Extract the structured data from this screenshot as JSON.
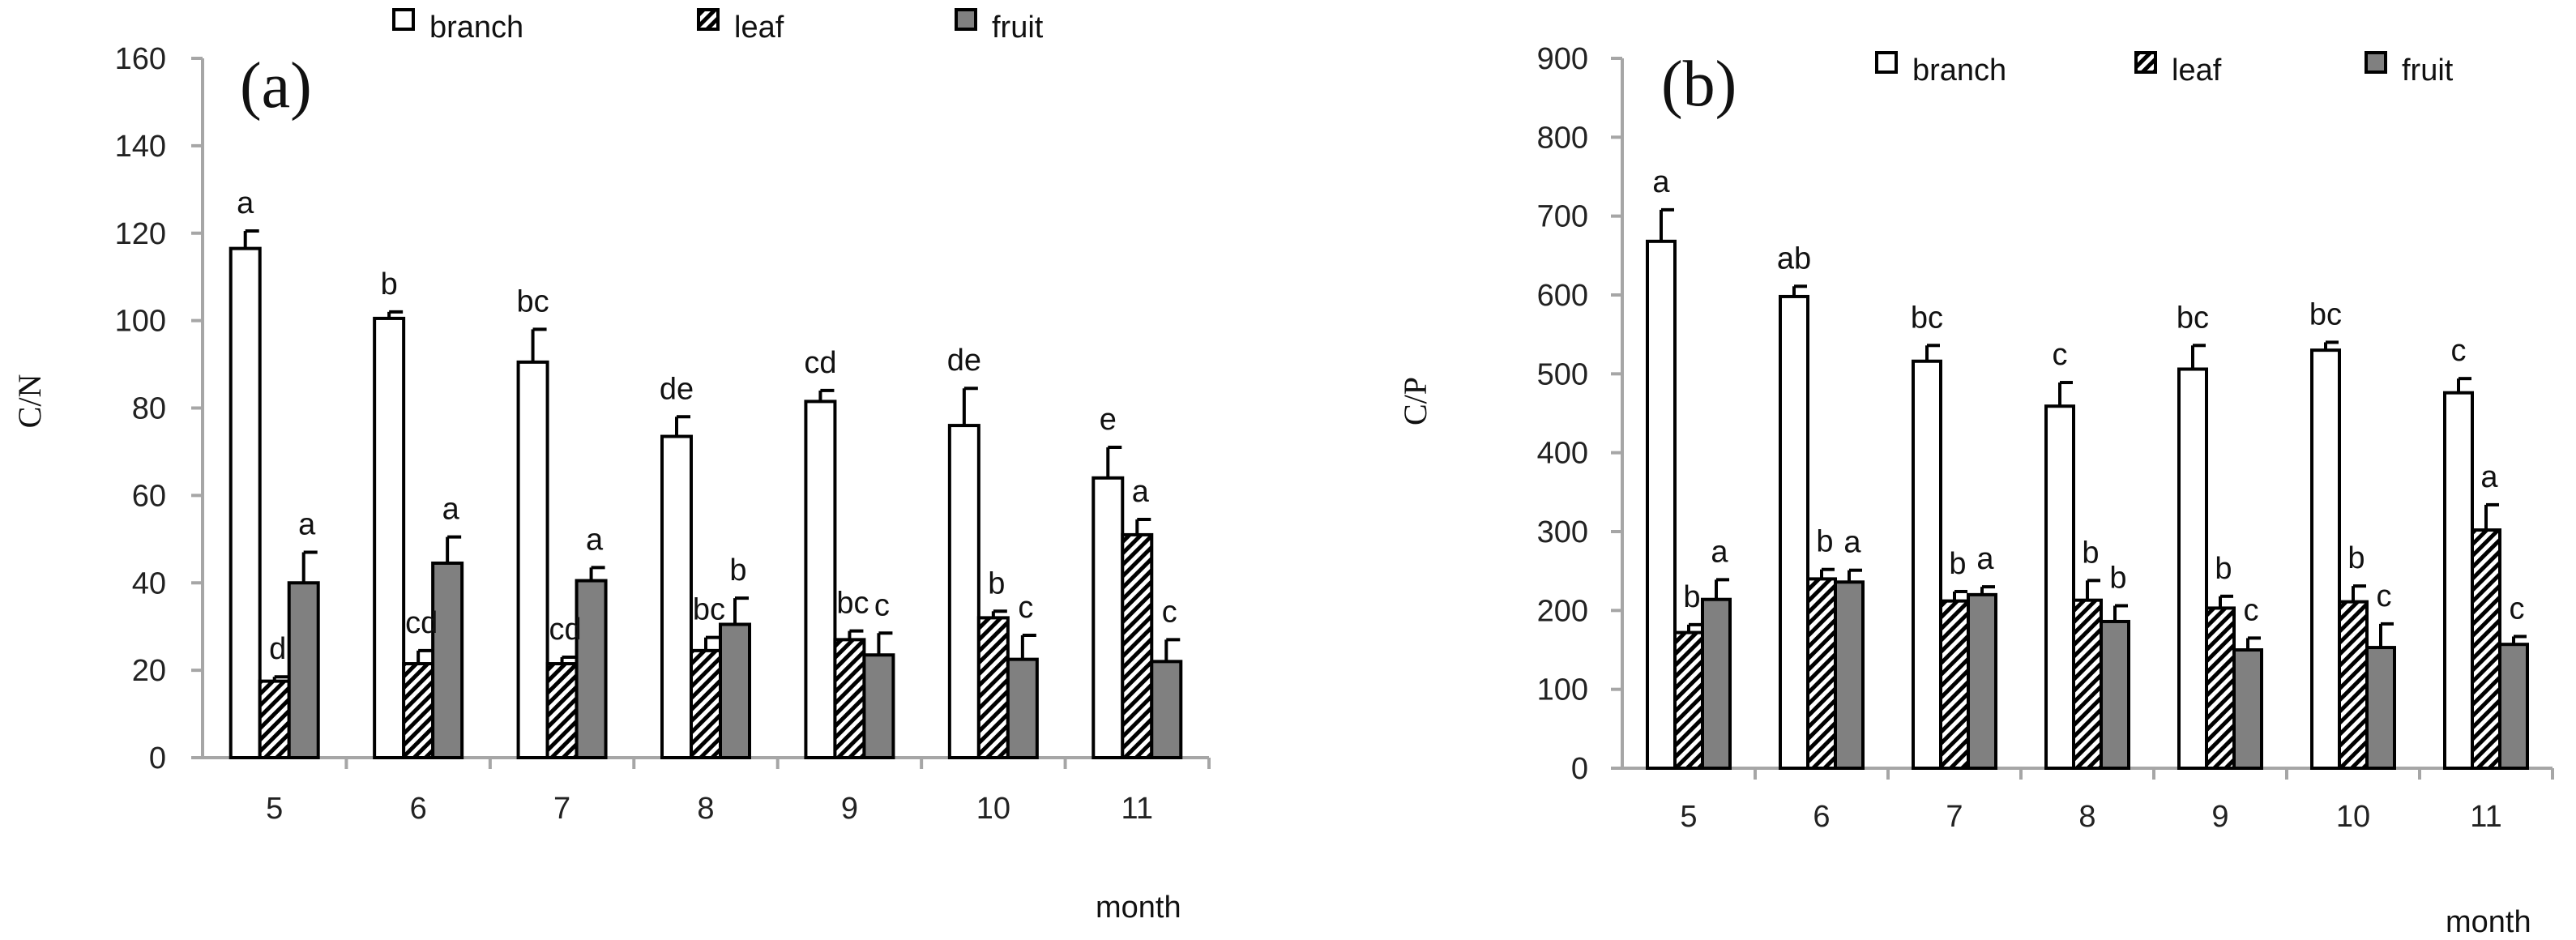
{
  "chart_data": [
    {
      "id": "a",
      "type": "bar",
      "panel_label": "(a)",
      "ylabel": "C/N",
      "xlabel": "month",
      "ylim": [
        0,
        160
      ],
      "yticks": [
        0,
        20,
        40,
        60,
        80,
        100,
        120,
        140,
        160
      ],
      "categories": [
        "5",
        "6",
        "7",
        "8",
        "9",
        "10",
        "11"
      ],
      "legend": [
        "branch",
        "leaf",
        "fruit"
      ],
      "series": [
        {
          "name": "branch",
          "pattern": "white",
          "values": [
            116.5,
            100.5,
            90.5,
            73.5,
            81.5,
            76,
            64
          ],
          "errors": [
            4,
            1.5,
            7.5,
            4.5,
            2.5,
            8.5,
            7
          ],
          "letters": [
            "a",
            "b",
            "bc",
            "de",
            "cd",
            "de",
            "e"
          ]
        },
        {
          "name": "leaf",
          "pattern": "hatch",
          "values": [
            17.5,
            21.5,
            21.5,
            24.5,
            27,
            32,
            51
          ],
          "errors": [
            1,
            3,
            1.5,
            3,
            2,
            1.5,
            3.5
          ],
          "letters": [
            "d",
            "cd",
            "cd",
            "bc",
            "bc",
            "b",
            "a"
          ]
        },
        {
          "name": "fruit",
          "pattern": "gray",
          "values": [
            40,
            44.5,
            40.5,
            30.5,
            23.5,
            22.5,
            22
          ],
          "errors": [
            7,
            6,
            3,
            6,
            5,
            5.5,
            5
          ],
          "letters": [
            "a",
            "a",
            "a",
            "b",
            "c",
            "c",
            "c"
          ]
        }
      ]
    },
    {
      "id": "b",
      "type": "bar",
      "panel_label": "(b)",
      "ylabel": "C/P",
      "xlabel": "month",
      "ylim": [
        0,
        900
      ],
      "yticks": [
        0,
        100,
        200,
        300,
        400,
        500,
        600,
        700,
        800,
        900
      ],
      "categories": [
        "5",
        "6",
        "7",
        "8",
        "9",
        "10",
        "11"
      ],
      "legend": [
        "branch",
        "leaf",
        "fruit"
      ],
      "series": [
        {
          "name": "branch",
          "pattern": "white",
          "values": [
            668,
            598,
            516,
            459,
            506,
            530,
            476
          ],
          "errors": [
            40,
            13,
            20,
            30,
            30,
            10,
            18
          ],
          "letters": [
            "a",
            "ab",
            "bc",
            "c",
            "bc",
            "bc",
            "c"
          ]
        },
        {
          "name": "leaf",
          "pattern": "hatch",
          "values": [
            172,
            240,
            212,
            213,
            203,
            211,
            302
          ],
          "errors": [
            10,
            12,
            12,
            25,
            15,
            20,
            32
          ],
          "letters": [
            "b",
            "b",
            "b",
            "b",
            "b",
            "b",
            "a"
          ]
        },
        {
          "name": "fruit",
          "pattern": "gray",
          "values": [
            214,
            236,
            220,
            186,
            150,
            153,
            157
          ],
          "errors": [
            25,
            15,
            10,
            20,
            15,
            30,
            10
          ],
          "letters": [
            "a",
            "a",
            "a",
            "b",
            "c",
            "c",
            "c"
          ]
        }
      ]
    }
  ]
}
